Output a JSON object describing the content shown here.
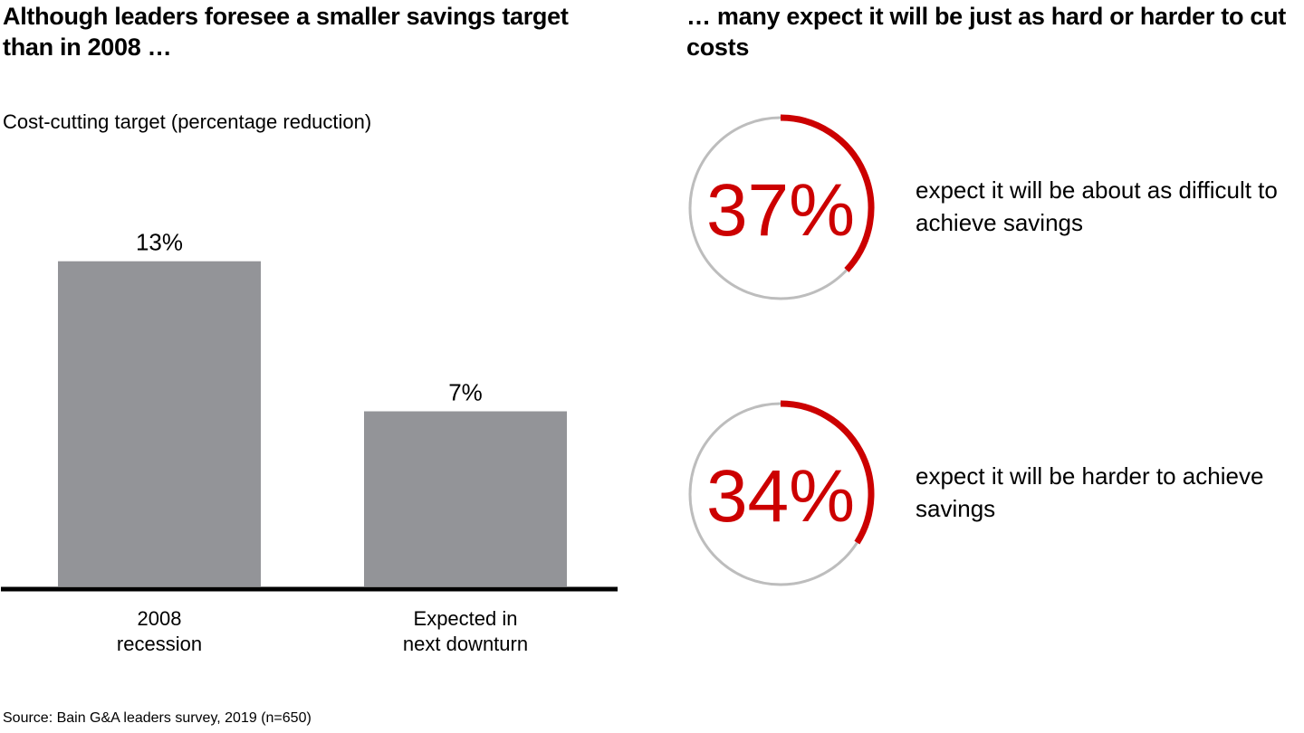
{
  "left_panel": {
    "title": "Although leaders foresee a smaller savings target than in 2008 …",
    "subtitle": "Cost-cutting target (percentage reduction)"
  },
  "right_panel": {
    "title": "… many expect it will be just as hard or harder to cut costs"
  },
  "source": "Source: Bain G&A leaders survey, 2019 (n=650)",
  "colors": {
    "bar": "#939498",
    "accent_red": "#cc0000",
    "ring_gray": "#bdbdbd",
    "axis": "#000000"
  },
  "chart_data": [
    {
      "type": "bar",
      "title": "Cost-cutting target (percentage reduction)",
      "categories": [
        "2008 recession",
        "Expected in next downturn"
      ],
      "category_lines": [
        [
          "2008",
          "recession"
        ],
        [
          "Expected in",
          "next downturn"
        ]
      ],
      "values": [
        13,
        7
      ],
      "data_labels": [
        "13%",
        "7%"
      ],
      "unit": "%",
      "xlabel": "",
      "ylabel": "",
      "ylim": [
        0,
        14.4
      ],
      "grid": false,
      "legend": "none"
    },
    {
      "type": "pie",
      "subtype": "progress-ring",
      "items": [
        {
          "value": 37,
          "label": "37%",
          "description": "expect it will be about as difficult to achieve savings"
        },
        {
          "value": 34,
          "label": "34%",
          "description": "expect it will be harder to achieve savings"
        }
      ],
      "max": 100
    }
  ]
}
